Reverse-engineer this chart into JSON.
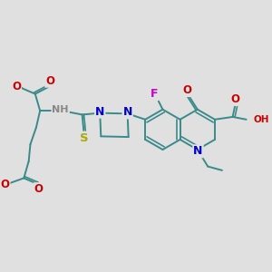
{
  "bg_color": "#e0e0e0",
  "bond_color": "#3a8a8a",
  "bond_width": 1.4,
  "atom_colors": {
    "N": "#0000cc",
    "O": "#cc0000",
    "F": "#cc00cc",
    "S": "#aaaa00",
    "H": "#888888",
    "C": "#3a8a8a"
  },
  "font_size": 7.5
}
